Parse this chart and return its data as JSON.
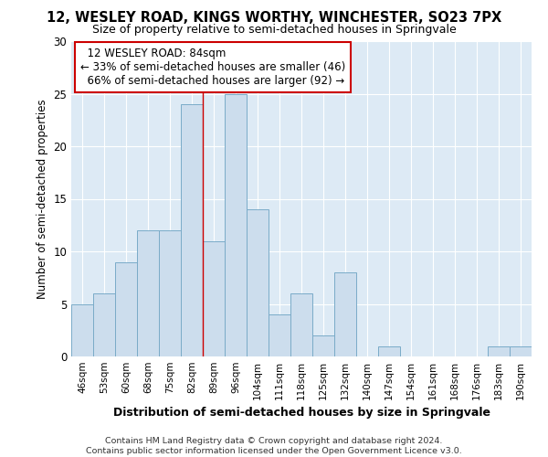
{
  "title": "12, WESLEY ROAD, KINGS WORTHY, WINCHESTER, SO23 7PX",
  "subtitle": "Size of property relative to semi-detached houses in Springvale",
  "xlabel": "Distribution of semi-detached houses by size in Springvale",
  "ylabel": "Number of semi-detached properties",
  "categories": [
    "46sqm",
    "53sqm",
    "60sqm",
    "68sqm",
    "75sqm",
    "82sqm",
    "89sqm",
    "96sqm",
    "104sqm",
    "111sqm",
    "118sqm",
    "125sqm",
    "132sqm",
    "140sqm",
    "147sqm",
    "154sqm",
    "161sqm",
    "168sqm",
    "176sqm",
    "183sqm",
    "190sqm"
  ],
  "values": [
    5,
    6,
    9,
    12,
    12,
    24,
    11,
    25,
    14,
    4,
    6,
    2,
    8,
    0,
    1,
    0,
    0,
    0,
    0,
    1,
    1
  ],
  "bar_color": "#ccdded",
  "bar_edge_color": "#7aabc8",
  "property_label": "12 WESLEY ROAD: 84sqm",
  "pct_smaller": 33,
  "count_smaller": 46,
  "pct_larger": 66,
  "count_larger": 92,
  "vline_x_idx": 5,
  "ylim": [
    0,
    30
  ],
  "yticks": [
    0,
    5,
    10,
    15,
    20,
    25,
    30
  ],
  "bg_color": "#ddeaf5",
  "grid_color": "#ffffff",
  "annotation_box_color": "#ffffff",
  "annotation_box_edge": "#cc0000",
  "vline_color": "#cc0000",
  "fig_bg": "#ffffff",
  "footer": "Contains HM Land Registry data © Crown copyright and database right 2024.\nContains public sector information licensed under the Open Government Licence v3.0."
}
